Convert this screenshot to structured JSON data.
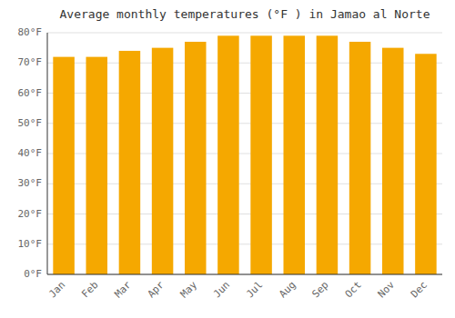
{
  "chart_data": {
    "type": "bar",
    "title": "Average monthly temperatures (°F ) in Jamao al Norte",
    "categories": [
      "Jan",
      "Feb",
      "Mar",
      "Apr",
      "May",
      "Jun",
      "Jul",
      "Aug",
      "Sep",
      "Oct",
      "Nov",
      "Dec"
    ],
    "values": [
      72,
      72,
      74,
      75,
      77,
      79,
      79,
      79,
      79,
      77,
      75,
      73
    ],
    "color": "#F5A800",
    "ylim": [
      0,
      80
    ],
    "yticks": [
      {
        "value": 0,
        "label": "0°F"
      },
      {
        "value": 10,
        "label": "10°F"
      },
      {
        "value": 20,
        "label": "20°F"
      },
      {
        "value": 30,
        "label": "30°F"
      },
      {
        "value": 40,
        "label": "40°F"
      },
      {
        "value": 50,
        "label": "50°F"
      },
      {
        "value": 60,
        "label": "60°F"
      },
      {
        "value": 70,
        "label": "70°F"
      },
      {
        "value": 80,
        "label": "80°F"
      }
    ],
    "grid": true
  }
}
